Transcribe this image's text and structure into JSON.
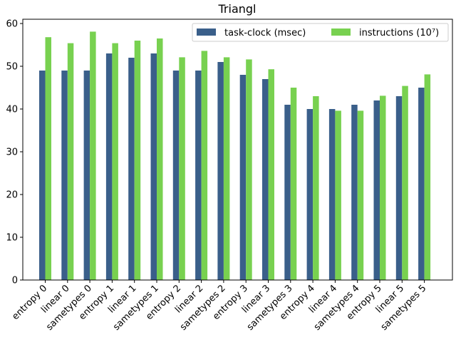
{
  "chart_data": {
    "type": "bar",
    "title": "Triangl",
    "xlabel": "",
    "ylabel": "",
    "ylim": [
      0,
      61
    ],
    "yticks": [
      0,
      10,
      20,
      30,
      40,
      50,
      60
    ],
    "grid": false,
    "legend_position": "top-right",
    "categories": [
      "entropy 0",
      "linear 0",
      "sametypes 0",
      "entropy 1",
      "linear 1",
      "sametypes 1",
      "entropy 2",
      "linear 2",
      "sametypes 2",
      "entropy 3",
      "linear 3",
      "sametypes 3",
      "entropy 4",
      "linear 4",
      "sametypes 4",
      "entropy 5",
      "linear 5",
      "sametypes 5"
    ],
    "series": [
      {
        "name": "task-clock (msec)",
        "color": "#3a5f8a",
        "values": [
          49,
          49,
          49,
          53,
          52,
          53,
          49,
          49,
          51,
          48,
          47,
          41,
          40,
          40,
          41,
          42,
          43,
          45
        ]
      },
      {
        "name": "instructions (10⁷)",
        "color": "#78d150",
        "values": [
          56.8,
          55.4,
          58.1,
          55.4,
          56.0,
          56.5,
          52.1,
          53.6,
          52.1,
          51.6,
          49.3,
          45.0,
          43.0,
          39.6,
          39.6,
          43.1,
          45.4,
          48.1
        ]
      }
    ]
  }
}
